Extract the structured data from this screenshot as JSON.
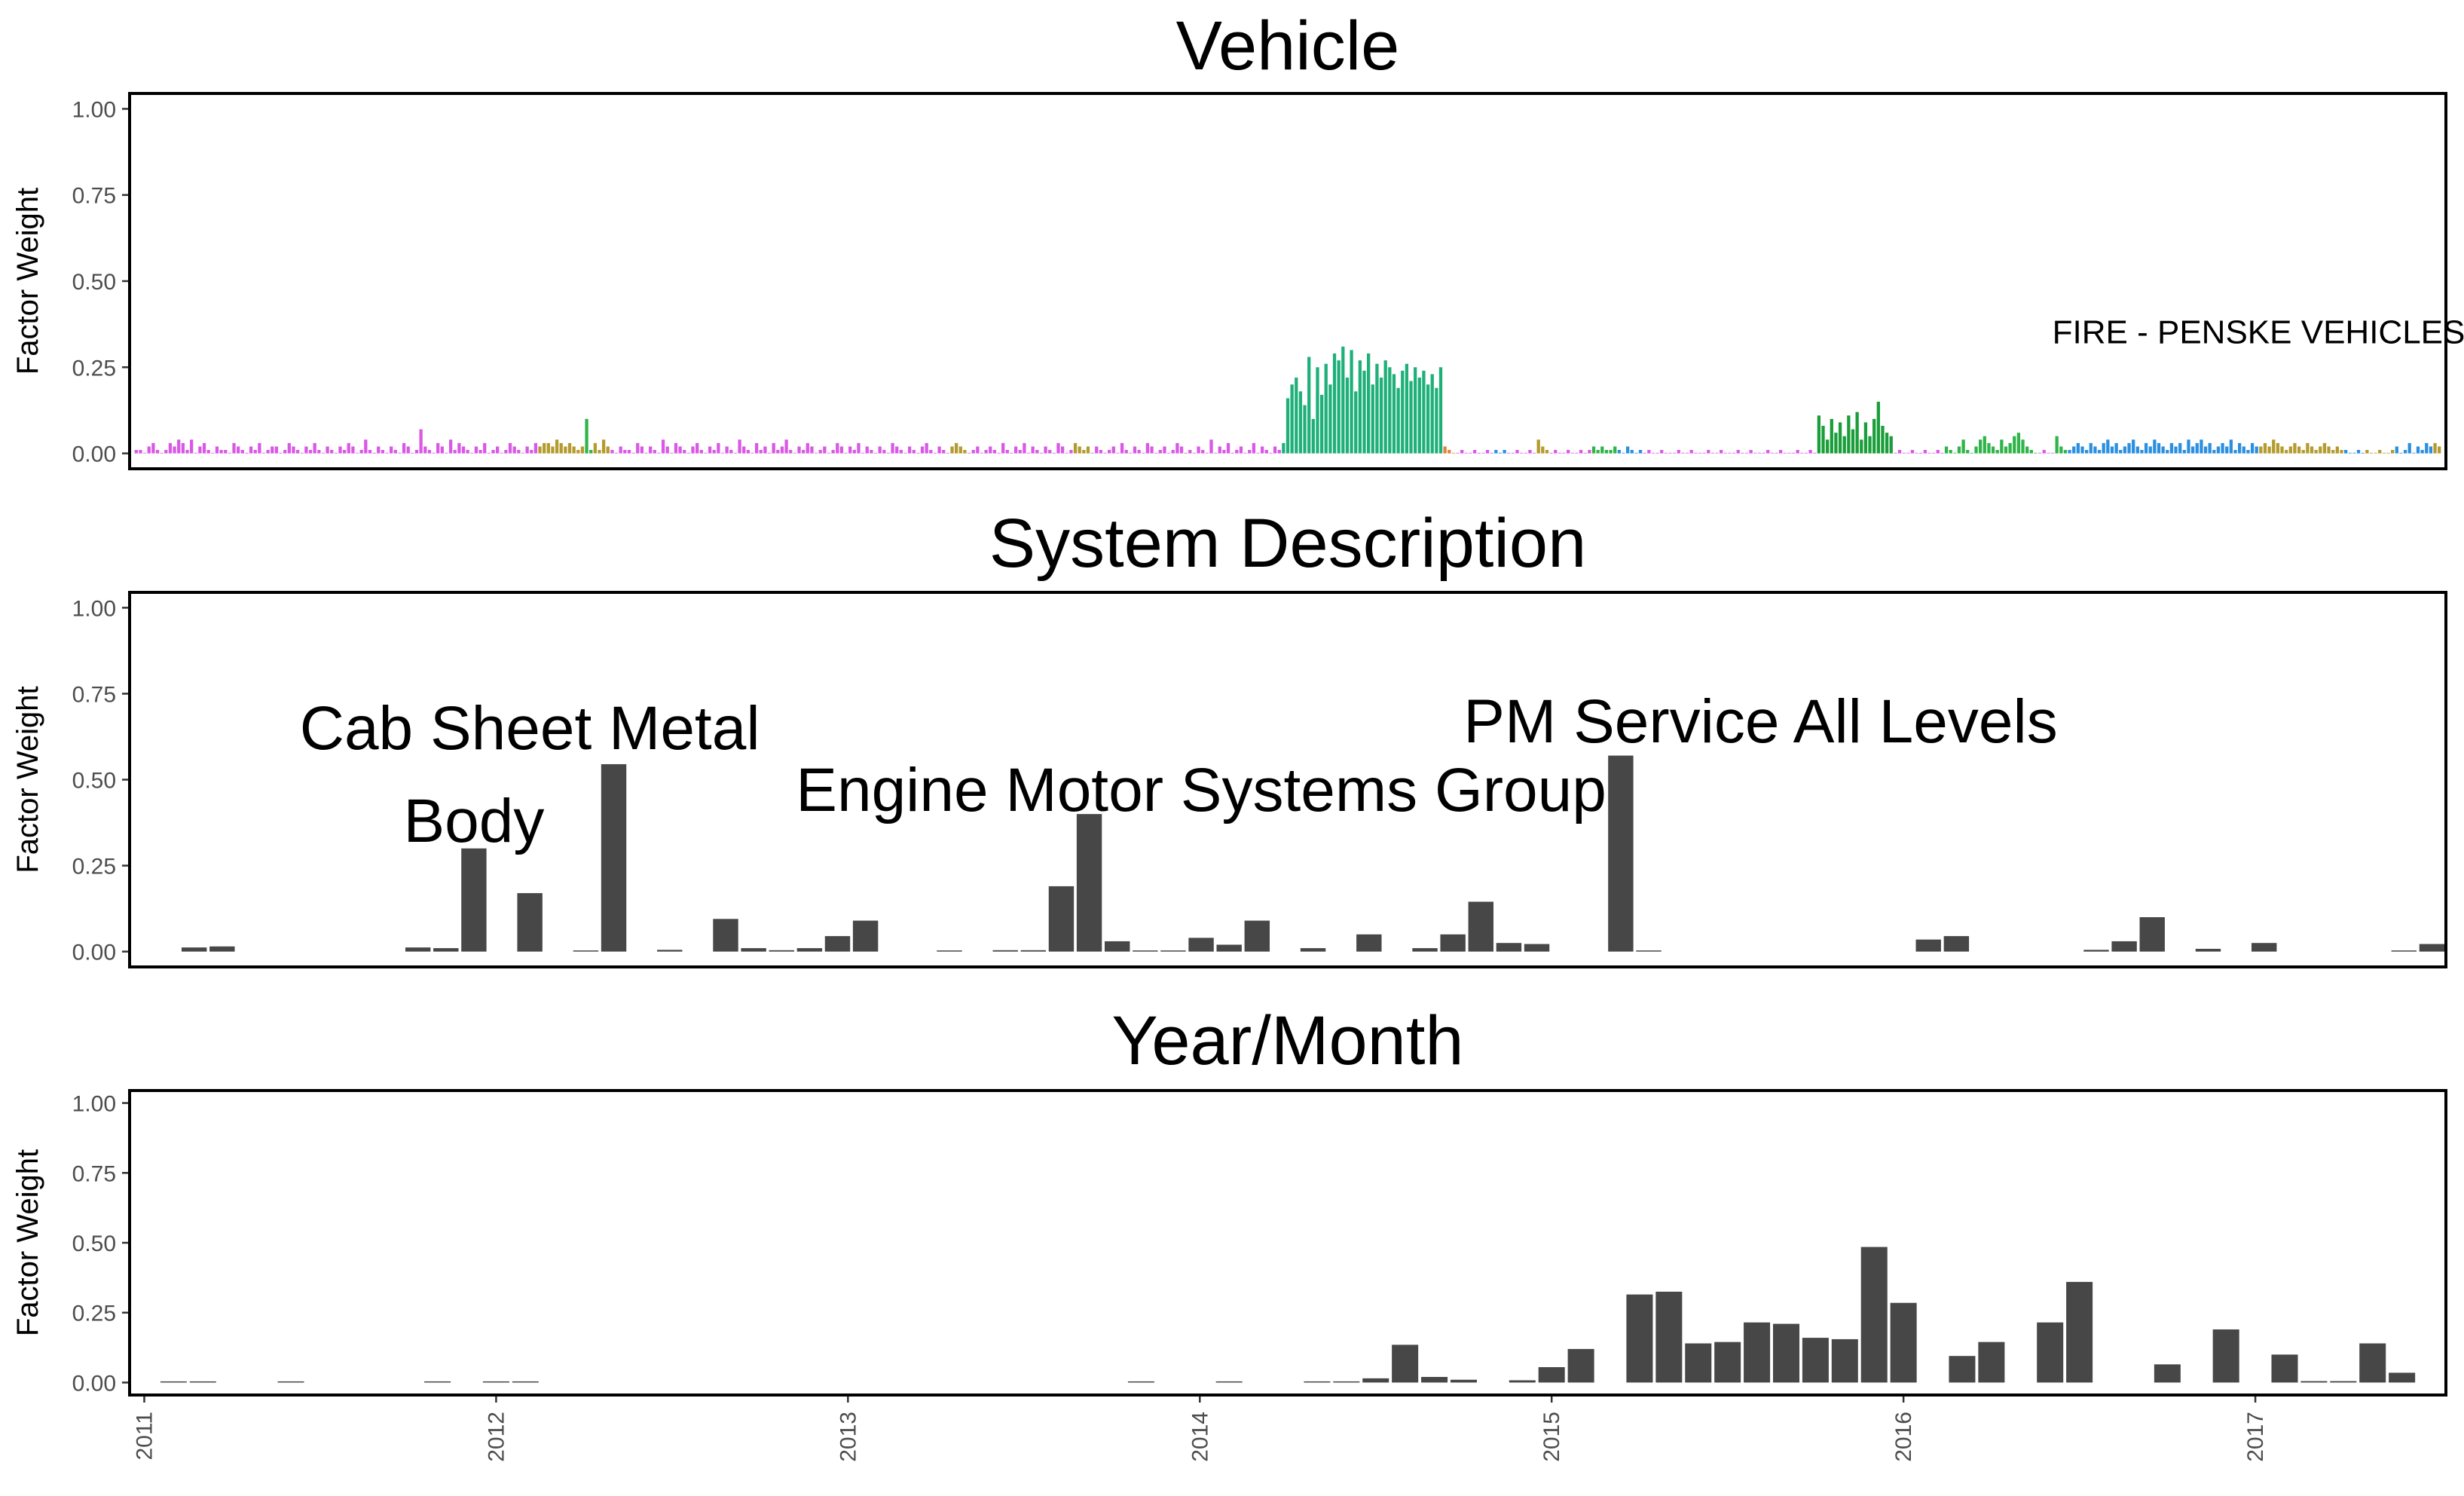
{
  "chart_data": [
    {
      "type": "bar",
      "title": "Vehicle",
      "ylabel": "Factor Weight",
      "ylim": [
        0,
        1
      ],
      "yticks": [
        "0.00",
        "0.25",
        "0.50",
        "0.75",
        "1.00"
      ],
      "grid": false,
      "legend": "none",
      "annotations": [
        {
          "text": "FIRE - PENSKE VEHICLES",
          "x_index": 500,
          "y": 0.35
        }
      ],
      "groups": [
        {
          "color": "#d958e6",
          "values": [
            0.01,
            0.01,
            0.0,
            0.02,
            0.03,
            0.01,
            0.0,
            0.01,
            0.03,
            0.02,
            0.04,
            0.03,
            0.01,
            0.04,
            0.0,
            0.02,
            0.03,
            0.01,
            0.0,
            0.02,
            0.01,
            0.01,
            0.0,
            0.03,
            0.02,
            0.01,
            0.0,
            0.02,
            0.01,
            0.03,
            0.0,
            0.01,
            0.02,
            0.02,
            0.0,
            0.01,
            0.03,
            0.02,
            0.01,
            0.0,
            0.02,
            0.01,
            0.03,
            0.01,
            0.0,
            0.02,
            0.01,
            0.0,
            0.02,
            0.01,
            0.03,
            0.02,
            0.0,
            0.01,
            0.04,
            0.01,
            0.0,
            0.02,
            0.01,
            0.0,
            0.02,
            0.01,
            0.0,
            0.03,
            0.02,
            0.0,
            0.01,
            0.07,
            0.02,
            0.01,
            0.0,
            0.03,
            0.02,
            0.0,
            0.04,
            0.01,
            0.03,
            0.02,
            0.01,
            0.0,
            0.02,
            0.01,
            0.03,
            0.0,
            0.01,
            0.02,
            0.0,
            0.01,
            0.03,
            0.02,
            0.01,
            0.0,
            0.02,
            0.01,
            0.03
          ]
        },
        {
          "color": "#b39b2e",
          "values": [
            0.02,
            0.03,
            0.03,
            0.02,
            0.04,
            0.03,
            0.02,
            0.03,
            0.02,
            0.01,
            0.02
          ]
        },
        {
          "color": "#30b44a",
          "values": [
            0.1,
            0.01
          ]
        },
        {
          "color": "#b39b2e",
          "values": [
            0.03,
            0.01,
            0.04,
            0.02
          ]
        },
        {
          "color": "#d958e6",
          "values": [
            0.01,
            0.0,
            0.02,
            0.01,
            0.01,
            0.0,
            0.03,
            0.02,
            0.0,
            0.02,
            0.01,
            0.0,
            0.04,
            0.02,
            0.0,
            0.03,
            0.02,
            0.01,
            0.0,
            0.02,
            0.03,
            0.01,
            0.0,
            0.02,
            0.01,
            0.03,
            0.0,
            0.02,
            0.01,
            0.0,
            0.04,
            0.02,
            0.01,
            0.0,
            0.03,
            0.01,
            0.02,
            0.0,
            0.03,
            0.01,
            0.02,
            0.04,
            0.01,
            0.0,
            0.02,
            0.01,
            0.03,
            0.02,
            0.0,
            0.01,
            0.02,
            0.0,
            0.01,
            0.03,
            0.02,
            0.0,
            0.02,
            0.01,
            0.03,
            0.0,
            0.02,
            0.01,
            0.0,
            0.02,
            0.01,
            0.0,
            0.03,
            0.02,
            0.01,
            0.0,
            0.02,
            0.01,
            0.0,
            0.02,
            0.03,
            0.01,
            0.0,
            0.02,
            0.01,
            0.0
          ]
        },
        {
          "color": "#b39b2e",
          "values": [
            0.02,
            0.03,
            0.02,
            0.01
          ]
        },
        {
          "color": "#d958e6",
          "values": [
            0.0,
            0.01,
            0.02,
            0.0,
            0.01,
            0.02,
            0.01,
            0.0,
            0.03,
            0.01,
            0.0,
            0.02,
            0.01,
            0.03,
            0.0,
            0.02,
            0.01,
            0.0,
            0.02,
            0.01,
            0.0,
            0.03,
            0.02,
            0.0,
            0.01
          ]
        },
        {
          "color": "#b39b2e",
          "values": [
            0.03,
            0.02,
            0.01,
            0.02
          ]
        },
        {
          "color": "#d958e6",
          "values": [
            0.0,
            0.02,
            0.01,
            0.0,
            0.01,
            0.02,
            0.0,
            0.03,
            0.01,
            0.0,
            0.02,
            0.01,
            0.0,
            0.03,
            0.02,
            0.0,
            0.01,
            0.02,
            0.0,
            0.01,
            0.03,
            0.02,
            0.0,
            0.01,
            0.0,
            0.02,
            0.01,
            0.0,
            0.04,
            0.0,
            0.02,
            0.01,
            0.03,
            0.0,
            0.01,
            0.02,
            0.0,
            0.01,
            0.03,
            0.0,
            0.02,
            0.01,
            0.0,
            0.02,
            0.01
          ]
        },
        {
          "color": "#1fb07a",
          "values": [
            0.03,
            0.16,
            0.2,
            0.22,
            0.18,
            0.14,
            0.28,
            0.1,
            0.25,
            0.17,
            0.26,
            0.2,
            0.29,
            0.27,
            0.31,
            0.22,
            0.3,
            0.18,
            0.27,
            0.24,
            0.29,
            0.2,
            0.26,
            0.22,
            0.27,
            0.25,
            0.23,
            0.19,
            0.24,
            0.26,
            0.21,
            0.25,
            0.22,
            0.24,
            0.2,
            0.23,
            0.19,
            0.25
          ]
        },
        {
          "color": "#e0823a",
          "values": [
            0.02,
            0.01,
            0.0
          ]
        },
        {
          "color": "#d958e6",
          "values": [
            0.0,
            0.01,
            0.0,
            0.0,
            0.01,
            0.0,
            0.0,
            0.01,
            0.0
          ]
        },
        {
          "color": "#2b8fe0",
          "values": [
            0.01,
            0.0,
            0.01
          ]
        },
        {
          "color": "#d958e6",
          "values": [
            0.0,
            0.0,
            0.01,
            0.0,
            0.0,
            0.01,
            0.0
          ]
        },
        {
          "color": "#b39b2e",
          "values": [
            0.04,
            0.02,
            0.01
          ]
        },
        {
          "color": "#d958e6",
          "values": [
            0.0,
            0.01,
            0.0,
            0.0,
            0.01,
            0.0,
            0.0,
            0.01,
            0.0,
            0.01
          ]
        },
        {
          "color": "#30b44a",
          "values": [
            0.02,
            0.01,
            0.02,
            0.01,
            0.01,
            0.02
          ]
        },
        {
          "color": "#2b8fe0",
          "values": [
            0.01,
            0.0,
            0.02,
            0.01,
            0.0,
            0.01
          ]
        },
        {
          "color": "#d958e6",
          "values": [
            0.0,
            0.01,
            0.0,
            0.0,
            0.01,
            0.0,
            0.0,
            0.0,
            0.01,
            0.0,
            0.0,
            0.01,
            0.0,
            0.0,
            0.0,
            0.01,
            0.0,
            0.0,
            0.01,
            0.0,
            0.0,
            0.0,
            0.01,
            0.0,
            0.0,
            0.01,
            0.0,
            0.0,
            0.0,
            0.01,
            0.0,
            0.0,
            0.01,
            0.0,
            0.0,
            0.0,
            0.01,
            0.0,
            0.0,
            0.01,
            0.0
          ]
        },
        {
          "color": "#1a9e3a",
          "values": [
            0.11,
            0.08,
            0.04,
            0.1,
            0.06,
            0.09,
            0.05,
            0.11,
            0.07,
            0.12,
            0.04,
            0.09,
            0.05,
            0.1,
            0.15,
            0.08,
            0.06,
            0.05
          ]
        },
        {
          "color": "#d958e6",
          "values": [
            0.0,
            0.01,
            0.0,
            0.0,
            0.01,
            0.0,
            0.0,
            0.01,
            0.0,
            0.0,
            0.01,
            0.0
          ]
        },
        {
          "color": "#30b44a",
          "values": [
            0.02,
            0.01,
            0.0,
            0.02,
            0.04,
            0.01,
            0.0,
            0.02,
            0.04,
            0.05,
            0.03,
            0.02,
            0.01,
            0.04,
            0.02,
            0.03,
            0.05,
            0.06,
            0.04,
            0.02,
            0.01,
            0.0
          ]
        },
        {
          "color": "#d958e6",
          "values": [
            0.0,
            0.01,
            0.0,
            0.0
          ]
        },
        {
          "color": "#30b44a",
          "values": [
            0.05,
            0.02,
            0.01
          ]
        },
        {
          "color": "#2b8fe0",
          "values": [
            0.01,
            0.02,
            0.03,
            0.02,
            0.01,
            0.03,
            0.02,
            0.01,
            0.03,
            0.04,
            0.02,
            0.03,
            0.01,
            0.02,
            0.03,
            0.04,
            0.02,
            0.01,
            0.03,
            0.02,
            0.04,
            0.03,
            0.02,
            0.01,
            0.03,
            0.02,
            0.03,
            0.01,
            0.04,
            0.02,
            0.03,
            0.04,
            0.02,
            0.03,
            0.01,
            0.02,
            0.03,
            0.02,
            0.04,
            0.01,
            0.03,
            0.02,
            0.01,
            0.03,
            0.02
          ]
        },
        {
          "color": "#b39b2e",
          "values": [
            0.02,
            0.03,
            0.02,
            0.04,
            0.03,
            0.02,
            0.01,
            0.02,
            0.03,
            0.02,
            0.01,
            0.03,
            0.02,
            0.01,
            0.02,
            0.03,
            0.02,
            0.01,
            0.02,
            0.01
          ]
        },
        {
          "color": "#2b8fe0",
          "values": [
            0.01,
            0.0,
            0.0,
            0.01,
            0.0
          ]
        },
        {
          "color": "#b39b2e",
          "values": [
            0.01,
            0.0,
            0.0,
            0.01,
            0.0,
            0.0,
            0.01
          ]
        },
        {
          "color": "#2b8fe0",
          "values": [
            0.02,
            0.0,
            0.01,
            0.03,
            0.0,
            0.02,
            0.01,
            0.03,
            0.02
          ]
        },
        {
          "color": "#b39b2e",
          "values": [
            0.03,
            0.02
          ]
        }
      ]
    },
    {
      "type": "bar",
      "title": "System Description",
      "ylabel": "Factor Weight",
      "ylim": [
        0,
        1
      ],
      "yticks": [
        "0.00",
        "0.25",
        "0.50",
        "0.75",
        "1.00"
      ],
      "grid": false,
      "legend": "none",
      "color": "#474747",
      "values": [
        0,
        0.012,
        0.015,
        0,
        0,
        0,
        0,
        0,
        0,
        0.012,
        0.01,
        0.3,
        0,
        0.17,
        0,
        0.003,
        0.545,
        0,
        0.005,
        0,
        0.095,
        0.01,
        0.004,
        0.01,
        0.045,
        0.09,
        0,
        0,
        0.003,
        0,
        0.004,
        0.004,
        0.19,
        0.4,
        0.03,
        0.003,
        0.003,
        0.04,
        0.02,
        0.09,
        0,
        0.01,
        0,
        0.05,
        0,
        0.01,
        0.05,
        0.145,
        0.025,
        0.022,
        0,
        0,
        0.57,
        0.002,
        0,
        0,
        0,
        0,
        0,
        0,
        0,
        0,
        0,
        0.035,
        0.045,
        0,
        0,
        0,
        0,
        0.005,
        0.03,
        0.1,
        0,
        0.008,
        0,
        0.025,
        0,
        0,
        0,
        0,
        0.003,
        0.022
      ],
      "annotations": [
        {
          "text": "Cab Sheet Metal",
          "x_index": 13,
          "y": 0.65
        },
        {
          "text": "Body",
          "x_index": 11,
          "y": 0.38
        },
        {
          "text": "Engine Motor Systems Group",
          "x_index": 37,
          "y": 0.47
        },
        {
          "text": "PM Service All Levels",
          "x_index": 57,
          "y": 0.67
        }
      ]
    },
    {
      "type": "bar",
      "title": "Year/Month",
      "ylabel": "Factor Weight",
      "ylim": [
        0,
        1
      ],
      "yticks": [
        "0.00",
        "0.25",
        "0.50",
        "0.75",
        "1.00"
      ],
      "grid": false,
      "legend": "none",
      "color": "#474747",
      "x_start": "2010-12",
      "x_tick_labels": [
        "2011",
        "2012",
        "2013",
        "2014",
        "2015",
        "2016",
        "2017"
      ],
      "values": [
        0,
        0.002,
        0.002,
        0,
        0,
        0.002,
        0,
        0,
        0,
        0,
        0.002,
        0,
        0.002,
        0.002,
        0,
        0,
        0,
        0,
        0,
        0,
        0,
        0,
        0,
        0,
        0,
        0,
        0,
        0,
        0,
        0,
        0,
        0,
        0,
        0,
        0.002,
        0,
        0,
        0.004,
        0,
        0,
        0.003,
        0.004,
        0.015,
        0.135,
        0.02,
        0.01,
        0,
        0.008,
        0.055,
        0.12,
        0,
        0.315,
        0.325,
        0.14,
        0.145,
        0.215,
        0.21,
        0.16,
        0.155,
        0.485,
        0.285,
        0,
        0.095,
        0.145,
        0,
        0.215,
        0.36,
        0,
        0,
        0.065,
        0,
        0.19,
        0,
        0.1,
        0.005,
        0.005,
        0.14,
        0.035,
        0
      ]
    }
  ]
}
